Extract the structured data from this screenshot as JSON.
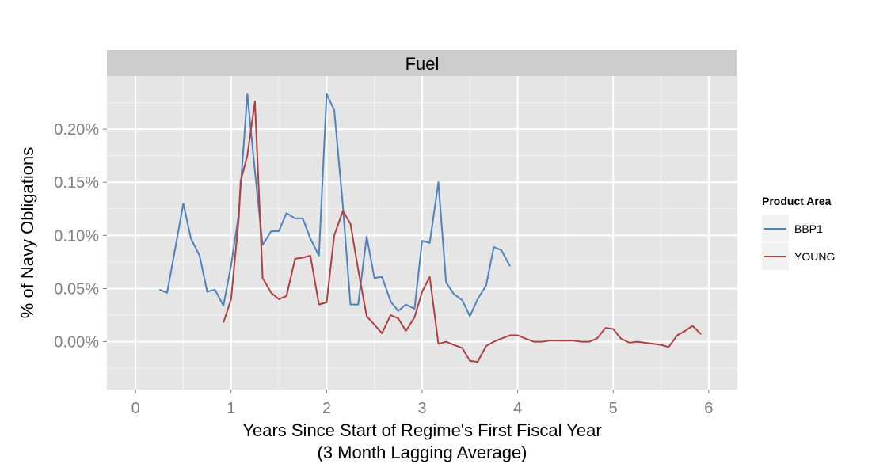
{
  "chart_data": {
    "type": "line",
    "facet_title": "Fuel",
    "xlabel": "Years Since Start of Regime's First Fiscal Year",
    "xlabel_line2": "(3 Month Lagging Average)",
    "ylabel": "% of Navy Obligations",
    "xlim": [
      -0.3,
      6.3
    ],
    "ylim": [
      -0.045,
      0.25
    ],
    "x_ticks": [
      0,
      1,
      2,
      3,
      4,
      5,
      6
    ],
    "x_tick_labels": [
      "0",
      "1",
      "2",
      "3",
      "4",
      "5",
      "6"
    ],
    "y_ticks": [
      0.0,
      0.05,
      0.1,
      0.15,
      0.2
    ],
    "y_tick_labels": [
      "0.00%",
      "0.05%",
      "0.10%",
      "0.15%",
      "0.20%"
    ],
    "grid": true,
    "legend_title": "Product Area",
    "legend_position": "right",
    "series": [
      {
        "name": "BBP1",
        "color": "#4f81bd",
        "x": [
          0.25,
          0.33,
          0.42,
          0.5,
          0.58,
          0.67,
          0.75,
          0.83,
          0.92,
          1.0,
          1.08,
          1.17,
          1.25,
          1.33,
          1.42,
          1.5,
          1.58,
          1.67,
          1.75,
          1.83,
          1.92,
          2.0,
          2.08,
          2.17,
          2.25,
          2.33,
          2.42,
          2.5,
          2.58,
          2.67,
          2.75,
          2.83,
          2.92,
          3.0,
          3.08,
          3.17,
          3.25,
          3.33,
          3.42,
          3.5,
          3.58,
          3.67,
          3.75,
          3.83,
          3.92
        ],
        "y": [
          0.049,
          0.046,
          0.09,
          0.13,
          0.097,
          0.081,
          0.047,
          0.049,
          0.034,
          0.072,
          0.12,
          0.233,
          0.16,
          0.091,
          0.104,
          0.104,
          0.121,
          0.116,
          0.116,
          0.097,
          0.081,
          0.233,
          0.218,
          0.128,
          0.035,
          0.035,
          0.099,
          0.06,
          0.061,
          0.038,
          0.029,
          0.035,
          0.031,
          0.095,
          0.093,
          0.15,
          0.056,
          0.045,
          0.039,
          0.024,
          0.04,
          0.053,
          0.089,
          0.086,
          0.071
        ]
      },
      {
        "name": "YOUNG",
        "color": "#b04040",
        "x": [
          0.92,
          1.0,
          1.08,
          1.1,
          1.17,
          1.25,
          1.33,
          1.42,
          1.5,
          1.58,
          1.67,
          1.75,
          1.83,
          1.92,
          2.0,
          2.08,
          2.17,
          2.25,
          2.33,
          2.42,
          2.5,
          2.58,
          2.67,
          2.75,
          2.83,
          2.92,
          3.0,
          3.08,
          3.17,
          3.25,
          3.33,
          3.42,
          3.5,
          3.58,
          3.67,
          3.75,
          3.83,
          3.92,
          4.0,
          4.08,
          4.17,
          4.25,
          4.33,
          4.42,
          4.5,
          4.58,
          4.67,
          4.75,
          4.83,
          4.92,
          5.0,
          5.08,
          5.17,
          5.25,
          5.33,
          5.42,
          5.5,
          5.58,
          5.67,
          5.75,
          5.83,
          5.92
        ],
        "y": [
          0.018,
          0.04,
          0.115,
          0.151,
          0.175,
          0.226,
          0.06,
          0.046,
          0.04,
          0.043,
          0.078,
          0.079,
          0.081,
          0.035,
          0.037,
          0.1,
          0.123,
          0.111,
          0.068,
          0.024,
          0.016,
          0.008,
          0.025,
          0.022,
          0.01,
          0.023,
          0.047,
          0.061,
          -0.002,
          0.0,
          -0.003,
          -0.006,
          -0.018,
          -0.019,
          -0.004,
          0.0,
          0.003,
          0.006,
          0.006,
          0.003,
          0.0,
          0.0,
          0.001,
          0.001,
          0.001,
          0.001,
          0.0,
          0.0,
          0.003,
          0.013,
          0.012,
          0.003,
          -0.001,
          0.0,
          -0.001,
          -0.002,
          -0.003,
          -0.005,
          0.006,
          0.01,
          0.015,
          0.007
        ]
      }
    ]
  }
}
